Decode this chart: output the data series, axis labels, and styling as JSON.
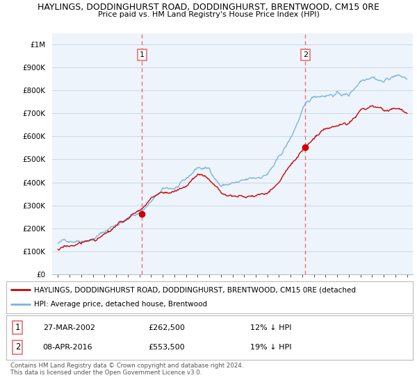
{
  "title1": "HAYLINGS, DODDINGHURST ROAD, DODDINGHURST, BRENTWOOD, CM15 0RE",
  "title2": "Price paid vs. HM Land Registry's House Price Index (HPI)",
  "legend_line1": "HAYLINGS, DODDINGHURST ROAD, DODDINGHURST, BRENTWOOD, CM15 0RE (detached",
  "legend_line2": "HPI: Average price, detached house, Brentwood",
  "sale1_date": "27-MAR-2002",
  "sale1_price": 262500,
  "sale1_pct": "12% ↓ HPI",
  "sale2_date": "08-APR-2016",
  "sale2_price": 553500,
  "sale2_pct": "19% ↓ HPI",
  "vline1_x": 2002.23,
  "vline2_x": 2016.27,
  "hpi_color": "#7ab3e0",
  "price_color": "#cc0000",
  "vline_color": "#e87070",
  "background_color": "#ffffff",
  "chart_bg_color": "#eef4fb",
  "grid_color": "#c8d8e8",
  "footnote": "Contains HM Land Registry data © Crown copyright and database right 2024.\nThis data is licensed under the Open Government Licence v3.0.",
  "ylim_min": 0,
  "ylim_max": 1050000,
  "xlim_min": 1994.5,
  "xlim_max": 2025.5,
  "hpi_nodes_x": [
    1995,
    1996,
    1997,
    1998,
    1999,
    2000,
    2001,
    2002,
    2003,
    2004,
    2005,
    2006,
    2007,
    2008,
    2009,
    2010,
    2011,
    2012,
    2013,
    2014,
    2015,
    2016,
    2017,
    2018,
    2019,
    2020,
    2021,
    2022,
    2023,
    2024,
    2025
  ],
  "hpi_nodes_y": [
    135000,
    148000,
    162000,
    178000,
    205000,
    240000,
    265000,
    290000,
    340000,
    380000,
    385000,
    405000,
    460000,
    450000,
    385000,
    395000,
    390000,
    395000,
    420000,
    480000,
    560000,
    680000,
    730000,
    750000,
    760000,
    750000,
    820000,
    860000,
    840000,
    870000,
    850000
  ],
  "price_nodes_x": [
    1995,
    1996,
    1997,
    1998,
    1999,
    2000,
    2001,
    2002,
    2003,
    2004,
    2005,
    2006,
    2007,
    2008,
    2009,
    2010,
    2011,
    2012,
    2013,
    2014,
    2015,
    2016,
    2017,
    2018,
    2019,
    2020,
    2021,
    2022,
    2023,
    2024,
    2025
  ],
  "price_nodes_y": [
    108000,
    120000,
    135000,
    148000,
    168000,
    195000,
    222000,
    262500,
    310000,
    340000,
    345000,
    365000,
    415000,
    400000,
    345000,
    355000,
    350000,
    355000,
    375000,
    430000,
    495000,
    553500,
    615000,
    640000,
    655000,
    660000,
    725000,
    740000,
    710000,
    720000,
    700000
  ]
}
